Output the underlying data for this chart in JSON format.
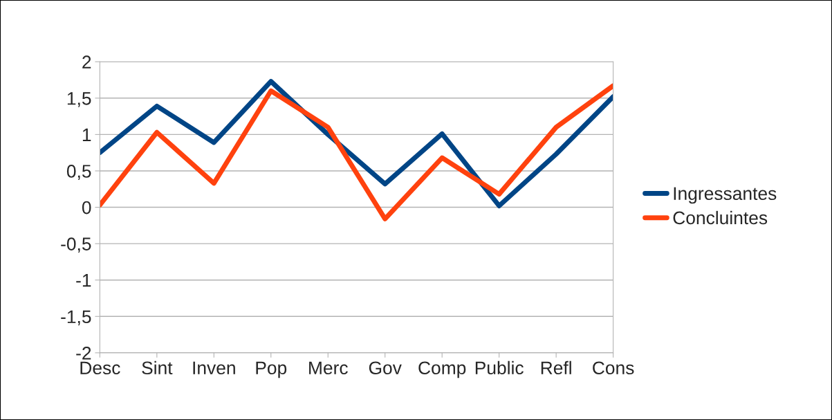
{
  "chart_data": {
    "type": "line",
    "categories": [
      "Desc",
      "Sint",
      "Inven",
      "Pop",
      "Merc",
      "Gov",
      "Comp",
      "Public",
      "Refl",
      "Cons"
    ],
    "series": [
      {
        "name": "Ingressantes",
        "color": "#004586",
        "values": [
          0.75,
          1.39,
          0.89,
          1.73,
          1.0,
          0.32,
          1.01,
          0.02,
          0.73,
          1.52
        ]
      },
      {
        "name": "Concluintes",
        "color": "#ff420e",
        "values": [
          0.03,
          1.03,
          0.33,
          1.6,
          1.1,
          -0.16,
          0.68,
          0.18,
          1.1,
          1.67
        ]
      }
    ],
    "ylim": [
      -2,
      2
    ],
    "yticks": [
      {
        "value": -2,
        "label": "-2"
      },
      {
        "value": -1.5,
        "label": "-1,5"
      },
      {
        "value": -1,
        "label": "-1"
      },
      {
        "value": -0.5,
        "label": "-0,5"
      },
      0,
      {
        "value": 0.5,
        "label": "0,5"
      },
      1,
      {
        "value": 1.5,
        "label": "1,5"
      },
      2
    ],
    "grid": "y",
    "legend": "right",
    "marker": "none",
    "line_style": "solid"
  }
}
